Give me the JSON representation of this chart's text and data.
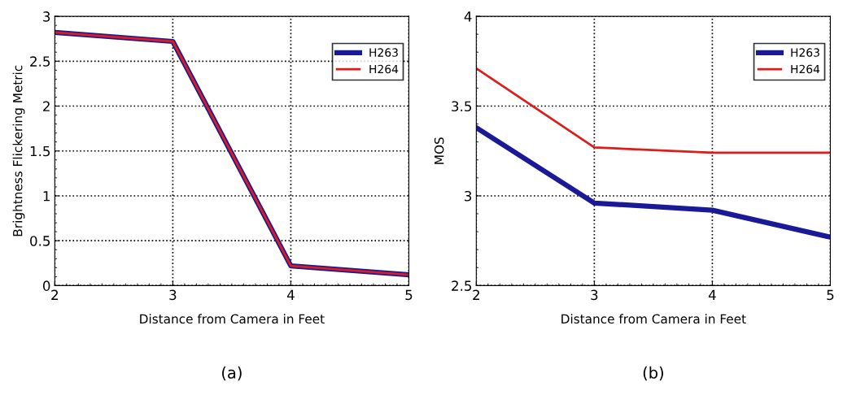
{
  "chart_data": [
    {
      "type": "line",
      "xlabel": "Distance from Camera in Feet",
      "ylabel": "Brightness Flickering Metric",
      "x": [
        2,
        3,
        4,
        5
      ],
      "series": [
        {
          "name": "H263",
          "color": "#1a1a99",
          "values": [
            2.82,
            2.72,
            0.22,
            0.12
          ]
        },
        {
          "name": "H264",
          "color": "#dd1c1c",
          "values": [
            2.82,
            2.72,
            0.22,
            0.12
          ]
        }
      ],
      "xlim": [
        2,
        5
      ],
      "xticks": [
        2,
        3,
        4,
        5
      ],
      "ylim": [
        0,
        3
      ],
      "yticks": [
        0,
        0.5,
        1,
        1.5,
        2,
        2.5,
        3
      ],
      "grid": true,
      "legend": "top right",
      "annotations": [
        "(a)"
      ]
    },
    {
      "type": "line",
      "xlabel": "Distance from Camera in Feet",
      "ylabel": "MOS",
      "x": [
        2,
        3,
        4,
        5
      ],
      "series": [
        {
          "name": "H263",
          "color": "#1a1a99",
          "values": [
            3.38,
            2.96,
            2.92,
            2.77
          ]
        },
        {
          "name": "H264",
          "color": "#dd1c1c",
          "values": [
            3.71,
            3.27,
            3.24,
            3.24
          ]
        }
      ],
      "xlim": [
        2,
        5
      ],
      "xticks": [
        2,
        3,
        4,
        5
      ],
      "ylim": [
        2.5,
        4
      ],
      "yticks": [
        2.5,
        3,
        3.5,
        4
      ],
      "grid": true,
      "legend": "top right",
      "annotations": [
        "(b)"
      ]
    }
  ]
}
